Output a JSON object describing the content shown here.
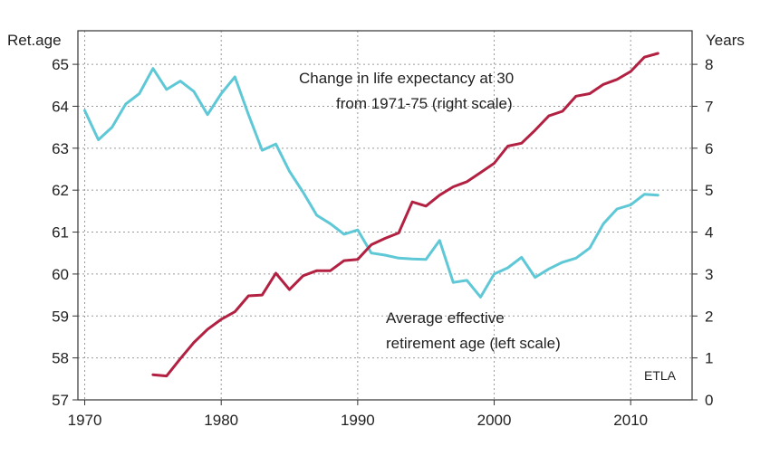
{
  "chart_data": {
    "type": "line",
    "left_axis_title": "Ret.age",
    "right_axis_title": "Years",
    "source": "ETLA",
    "xlim": [
      1969.5,
      2014.5
    ],
    "left_ylim": [
      57,
      65.8
    ],
    "right_ylim": [
      0,
      8.8
    ],
    "x_ticks": [
      1970,
      1980,
      1990,
      2000,
      2010
    ],
    "left_ticks": [
      57,
      58,
      59,
      60,
      61,
      62,
      63,
      64,
      65
    ],
    "right_ticks": [
      0,
      1,
      2,
      3,
      4,
      5,
      6,
      7,
      8
    ],
    "grid": true,
    "annotations": [
      {
        "id": "life",
        "lines": [
          "Change in life expectancy at 30",
          "from 1971-75 (right scale)"
        ]
      },
      {
        "id": "ret",
        "lines": [
          "Average effective",
          "retirement age (left scale)"
        ]
      }
    ],
    "series": [
      {
        "axis": "left",
        "color": "#5ec8d6",
        "x": [
          1970,
          1971,
          1972,
          1973,
          1974,
          1975,
          1976,
          1977,
          1978,
          1979,
          1980,
          1981,
          1982,
          1983,
          1984,
          1985,
          1986,
          1987,
          1988,
          1989,
          1990,
          1991,
          1992,
          1993,
          1994,
          1995,
          1996,
          1997,
          1998,
          1999,
          2000,
          2001,
          2002,
          2003,
          2004,
          2005,
          2006,
          2007,
          2008,
          2009,
          2010,
          2011,
          2012
        ],
        "y": [
          63.9,
          63.2,
          63.5,
          64.05,
          64.3,
          64.9,
          64.4,
          64.6,
          64.35,
          63.8,
          64.3,
          64.7,
          63.8,
          62.95,
          63.1,
          62.45,
          61.95,
          61.4,
          61.2,
          60.95,
          61.05,
          60.5,
          60.45,
          60.38,
          60.36,
          60.35,
          60.8,
          59.8,
          59.85,
          59.45,
          60.0,
          60.15,
          60.4,
          59.92,
          60.12,
          60.28,
          60.38,
          60.62,
          61.2,
          61.55,
          61.65,
          61.9,
          61.88
        ]
      },
      {
        "axis": "right",
        "color": "#b22042",
        "x": [
          1975,
          1976,
          1977,
          1978,
          1979,
          1980,
          1981,
          1982,
          1983,
          1984,
          1985,
          1986,
          1987,
          1988,
          1989,
          1990,
          1991,
          1992,
          1993,
          1994,
          1995,
          1996,
          1997,
          1998,
          1999,
          2000,
          2001,
          2002,
          2003,
          2004,
          2005,
          2006,
          2007,
          2008,
          2009,
          2010,
          2011,
          2012
        ],
        "y": [
          0.6,
          0.57,
          0.98,
          1.37,
          1.68,
          1.92,
          2.1,
          2.48,
          2.5,
          3.02,
          2.63,
          2.96,
          3.08,
          3.08,
          3.32,
          3.35,
          3.7,
          3.85,
          3.98,
          4.72,
          4.62,
          4.88,
          5.08,
          5.2,
          5.42,
          5.64,
          6.05,
          6.12,
          6.43,
          6.77,
          6.88,
          7.24,
          7.3,
          7.52,
          7.64,
          7.83,
          8.17,
          8.26
        ]
      }
    ]
  }
}
